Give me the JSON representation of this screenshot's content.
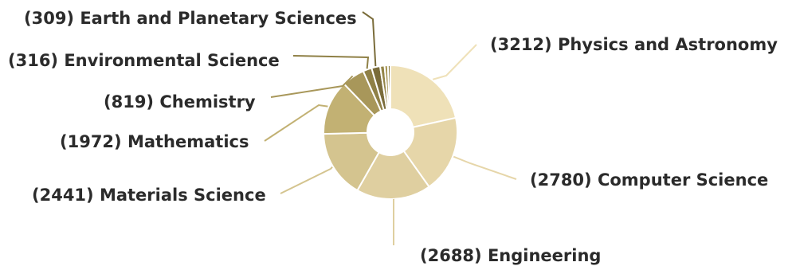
{
  "chart_data": {
    "type": "pie",
    "donut": true,
    "slices": [
      {
        "label": "(3212) Physics and Astronomy",
        "value": 3212,
        "color": "#efe1b8"
      },
      {
        "label": "(2780) Computer Science",
        "value": 2780,
        "color": "#e6d6a9"
      },
      {
        "label": "(2688) Engineering",
        "value": 2688,
        "color": "#dfcfa0"
      },
      {
        "label": "(2441) Materials Science",
        "value": 2441,
        "color": "#d4c48f"
      },
      {
        "label": "(1972) Mathematics",
        "value": 1972,
        "color": "#c2b173"
      },
      {
        "label": "(819) Chemistry",
        "value": 819,
        "color": "#a8975a"
      },
      {
        "label": "(316) Environmental Science",
        "value": 316,
        "color": "#8f8046"
      },
      {
        "label": "(309) Earth and Planetary Sciences",
        "value": 309,
        "color": "#7a6c3a"
      },
      {
        "label": "",
        "value": 160,
        "color": "#948548"
      },
      {
        "label": "",
        "value": 120,
        "color": "#a49350"
      },
      {
        "label": "",
        "value": 90,
        "color": "#8a7b40"
      }
    ],
    "legend": "none"
  }
}
